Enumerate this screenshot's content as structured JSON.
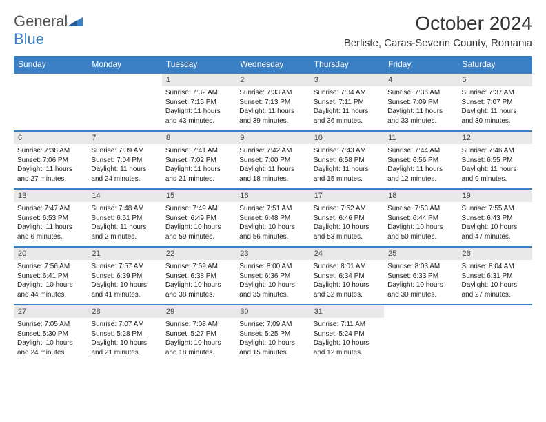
{
  "brand": {
    "name_a": "General",
    "name_b": "Blue"
  },
  "title": "October 2024",
  "location": "Berliste, Caras-Severin County, Romania",
  "colors": {
    "accent": "#3b7fc4",
    "header_bg": "#3b7fc4",
    "daynum_bg": "#e9e9e9",
    "text": "#222222"
  },
  "day_headers": [
    "Sunday",
    "Monday",
    "Tuesday",
    "Wednesday",
    "Thursday",
    "Friday",
    "Saturday"
  ],
  "weeks": [
    [
      null,
      null,
      {
        "n": "1",
        "sr": "Sunrise: 7:32 AM",
        "ss": "Sunset: 7:15 PM",
        "dl": "Daylight: 11 hours and 43 minutes."
      },
      {
        "n": "2",
        "sr": "Sunrise: 7:33 AM",
        "ss": "Sunset: 7:13 PM",
        "dl": "Daylight: 11 hours and 39 minutes."
      },
      {
        "n": "3",
        "sr": "Sunrise: 7:34 AM",
        "ss": "Sunset: 7:11 PM",
        "dl": "Daylight: 11 hours and 36 minutes."
      },
      {
        "n": "4",
        "sr": "Sunrise: 7:36 AM",
        "ss": "Sunset: 7:09 PM",
        "dl": "Daylight: 11 hours and 33 minutes."
      },
      {
        "n": "5",
        "sr": "Sunrise: 7:37 AM",
        "ss": "Sunset: 7:07 PM",
        "dl": "Daylight: 11 hours and 30 minutes."
      }
    ],
    [
      {
        "n": "6",
        "sr": "Sunrise: 7:38 AM",
        "ss": "Sunset: 7:06 PM",
        "dl": "Daylight: 11 hours and 27 minutes."
      },
      {
        "n": "7",
        "sr": "Sunrise: 7:39 AM",
        "ss": "Sunset: 7:04 PM",
        "dl": "Daylight: 11 hours and 24 minutes."
      },
      {
        "n": "8",
        "sr": "Sunrise: 7:41 AM",
        "ss": "Sunset: 7:02 PM",
        "dl": "Daylight: 11 hours and 21 minutes."
      },
      {
        "n": "9",
        "sr": "Sunrise: 7:42 AM",
        "ss": "Sunset: 7:00 PM",
        "dl": "Daylight: 11 hours and 18 minutes."
      },
      {
        "n": "10",
        "sr": "Sunrise: 7:43 AM",
        "ss": "Sunset: 6:58 PM",
        "dl": "Daylight: 11 hours and 15 minutes."
      },
      {
        "n": "11",
        "sr": "Sunrise: 7:44 AM",
        "ss": "Sunset: 6:56 PM",
        "dl": "Daylight: 11 hours and 12 minutes."
      },
      {
        "n": "12",
        "sr": "Sunrise: 7:46 AM",
        "ss": "Sunset: 6:55 PM",
        "dl": "Daylight: 11 hours and 9 minutes."
      }
    ],
    [
      {
        "n": "13",
        "sr": "Sunrise: 7:47 AM",
        "ss": "Sunset: 6:53 PM",
        "dl": "Daylight: 11 hours and 6 minutes."
      },
      {
        "n": "14",
        "sr": "Sunrise: 7:48 AM",
        "ss": "Sunset: 6:51 PM",
        "dl": "Daylight: 11 hours and 2 minutes."
      },
      {
        "n": "15",
        "sr": "Sunrise: 7:49 AM",
        "ss": "Sunset: 6:49 PM",
        "dl": "Daylight: 10 hours and 59 minutes."
      },
      {
        "n": "16",
        "sr": "Sunrise: 7:51 AM",
        "ss": "Sunset: 6:48 PM",
        "dl": "Daylight: 10 hours and 56 minutes."
      },
      {
        "n": "17",
        "sr": "Sunrise: 7:52 AM",
        "ss": "Sunset: 6:46 PM",
        "dl": "Daylight: 10 hours and 53 minutes."
      },
      {
        "n": "18",
        "sr": "Sunrise: 7:53 AM",
        "ss": "Sunset: 6:44 PM",
        "dl": "Daylight: 10 hours and 50 minutes."
      },
      {
        "n": "19",
        "sr": "Sunrise: 7:55 AM",
        "ss": "Sunset: 6:43 PM",
        "dl": "Daylight: 10 hours and 47 minutes."
      }
    ],
    [
      {
        "n": "20",
        "sr": "Sunrise: 7:56 AM",
        "ss": "Sunset: 6:41 PM",
        "dl": "Daylight: 10 hours and 44 minutes."
      },
      {
        "n": "21",
        "sr": "Sunrise: 7:57 AM",
        "ss": "Sunset: 6:39 PM",
        "dl": "Daylight: 10 hours and 41 minutes."
      },
      {
        "n": "22",
        "sr": "Sunrise: 7:59 AM",
        "ss": "Sunset: 6:38 PM",
        "dl": "Daylight: 10 hours and 38 minutes."
      },
      {
        "n": "23",
        "sr": "Sunrise: 8:00 AM",
        "ss": "Sunset: 6:36 PM",
        "dl": "Daylight: 10 hours and 35 minutes."
      },
      {
        "n": "24",
        "sr": "Sunrise: 8:01 AM",
        "ss": "Sunset: 6:34 PM",
        "dl": "Daylight: 10 hours and 32 minutes."
      },
      {
        "n": "25",
        "sr": "Sunrise: 8:03 AM",
        "ss": "Sunset: 6:33 PM",
        "dl": "Daylight: 10 hours and 30 minutes."
      },
      {
        "n": "26",
        "sr": "Sunrise: 8:04 AM",
        "ss": "Sunset: 6:31 PM",
        "dl": "Daylight: 10 hours and 27 minutes."
      }
    ],
    [
      {
        "n": "27",
        "sr": "Sunrise: 7:05 AM",
        "ss": "Sunset: 5:30 PM",
        "dl": "Daylight: 10 hours and 24 minutes."
      },
      {
        "n": "28",
        "sr": "Sunrise: 7:07 AM",
        "ss": "Sunset: 5:28 PM",
        "dl": "Daylight: 10 hours and 21 minutes."
      },
      {
        "n": "29",
        "sr": "Sunrise: 7:08 AM",
        "ss": "Sunset: 5:27 PM",
        "dl": "Daylight: 10 hours and 18 minutes."
      },
      {
        "n": "30",
        "sr": "Sunrise: 7:09 AM",
        "ss": "Sunset: 5:25 PM",
        "dl": "Daylight: 10 hours and 15 minutes."
      },
      {
        "n": "31",
        "sr": "Sunrise: 7:11 AM",
        "ss": "Sunset: 5:24 PM",
        "dl": "Daylight: 10 hours and 12 minutes."
      },
      null,
      null
    ]
  ]
}
